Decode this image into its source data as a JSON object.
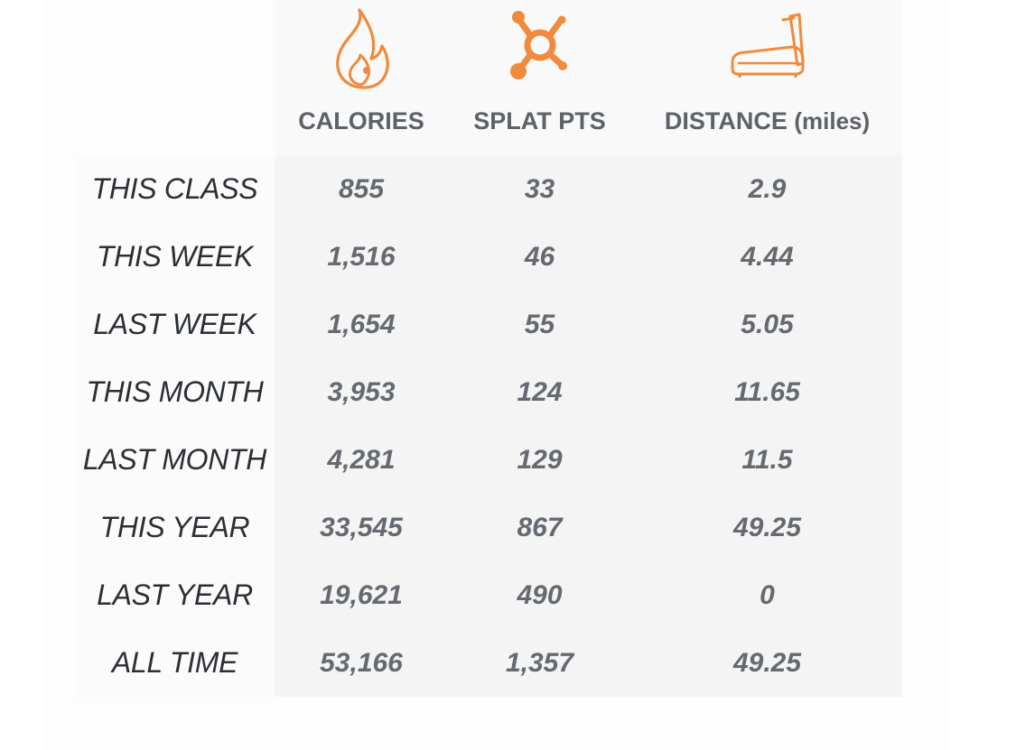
{
  "columns": [
    {
      "key": "calories",
      "label": "CALORIES",
      "unit": "",
      "icon": "flame-icon"
    },
    {
      "key": "splat",
      "label": "SPLAT PTS",
      "unit": "",
      "icon": "splat-icon"
    },
    {
      "key": "distance",
      "label": "DISTANCE",
      "unit": "(miles)",
      "icon": "treadmill-icon"
    }
  ],
  "accent_color": "#f08a3c",
  "rows": [
    {
      "label": "THIS CLASS",
      "calories": "855",
      "splat": "33",
      "distance": "2.9"
    },
    {
      "label": "THIS WEEK",
      "calories": "1,516",
      "splat": "46",
      "distance": "4.44"
    },
    {
      "label": "LAST WEEK",
      "calories": "1,654",
      "splat": "55",
      "distance": "5.05"
    },
    {
      "label": "THIS MONTH",
      "calories": "3,953",
      "splat": "124",
      "distance": "11.65"
    },
    {
      "label": "LAST MONTH",
      "calories": "4,281",
      "splat": "129",
      "distance": "11.5"
    },
    {
      "label": "THIS YEAR",
      "calories": "33,545",
      "splat": "867",
      "distance": "49.25"
    },
    {
      "label": "LAST YEAR",
      "calories": "19,621",
      "splat": "490",
      "distance": "0"
    },
    {
      "label": "ALL TIME",
      "calories": "53,166",
      "splat": "1,357",
      "distance": "49.25"
    }
  ]
}
